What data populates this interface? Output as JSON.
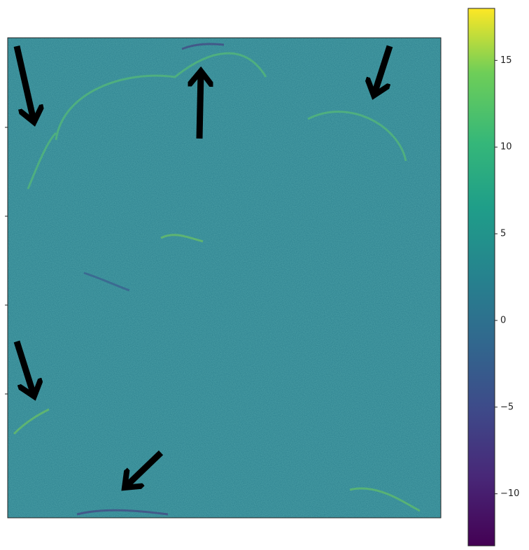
{
  "chart_data": {
    "type": "image",
    "colormap": "viridis",
    "clim": [
      -13,
      18
    ],
    "cticks": [
      {
        "value": -10,
        "label": "−10"
      },
      {
        "value": -5,
        "label": "−5"
      },
      0,
      5,
      10,
      15
    ]
  }
}
